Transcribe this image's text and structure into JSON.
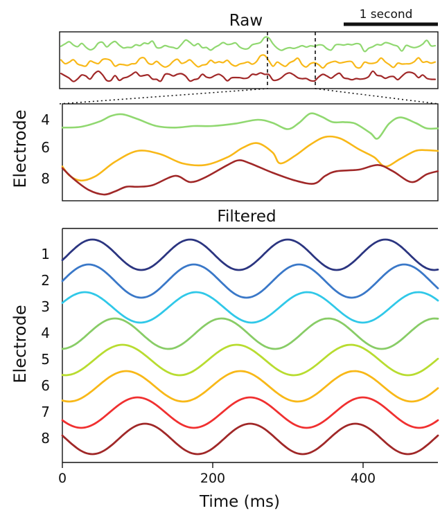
{
  "raw_panel": {
    "title": "Raw",
    "scalebar_label": "1 second"
  },
  "zoom_panel": {
    "ylabel": "Electrode",
    "tick_labels": [
      "4",
      "6",
      "8"
    ]
  },
  "filtered_panel": {
    "title": "Filtered",
    "ylabel": "Electrode",
    "tick_labels": [
      "1",
      "2",
      "3",
      "4",
      "5",
      "6",
      "7",
      "8"
    ]
  },
  "xaxis": {
    "label": "Time (ms)",
    "ticks": [
      "0",
      "200",
      "400"
    ]
  },
  "chart_data": [
    {
      "type": "line",
      "title": "Raw",
      "xlim": [
        0,
        3000
      ],
      "scalebar": {
        "label": "1 second",
        "duration_ms": 1000
      },
      "highlight_window_ms": [
        1250,
        1750
      ],
      "series": [
        {
          "electrode": 4,
          "color": "#90d870"
        },
        {
          "electrode": 6,
          "color": "#f8b818"
        },
        {
          "electrode": 8,
          "color": "#a02828"
        }
      ]
    },
    {
      "type": "line",
      "ylabel": "Electrode",
      "xlim": [
        0,
        500
      ],
      "series": [
        {
          "electrode": 4,
          "color": "#90d870",
          "x": [
            0,
            25,
            50,
            65,
            80,
            100,
            125,
            150,
            175,
            200,
            230,
            260,
            280,
            300,
            315,
            330,
            345,
            360,
            375,
            390,
            410,
            420,
            435,
            450,
            470,
            485,
            500
          ],
          "y": [
            4.5,
            4.45,
            4.1,
            3.75,
            3.65,
            3.95,
            4.4,
            4.5,
            4.4,
            4.4,
            4.25,
            4.0,
            4.2,
            4.6,
            4.2,
            3.6,
            3.8,
            4.15,
            4.15,
            4.25,
            4.85,
            5.2,
            4.25,
            3.85,
            4.2,
            4.55,
            4.55
          ]
        },
        {
          "electrode": 6,
          "color": "#f8b818",
          "x": [
            0,
            10,
            25,
            45,
            70,
            100,
            130,
            160,
            190,
            220,
            240,
            260,
            280,
            290,
            310,
            330,
            350,
            370,
            395,
            415,
            430,
            450,
            470,
            485,
            500
          ],
          "y": [
            7.0,
            7.6,
            7.9,
            7.6,
            6.7,
            6.0,
            6.2,
            6.8,
            6.9,
            6.4,
            5.8,
            5.5,
            6.1,
            6.8,
            6.3,
            5.6,
            5.1,
            5.2,
            5.9,
            6.4,
            7.0,
            6.5,
            6.0,
            5.95,
            6.0
          ]
        },
        {
          "electrode": 8,
          "color": "#a02828",
          "x": [
            0,
            15,
            35,
            55,
            70,
            85,
            100,
            120,
            150,
            170,
            190,
            220,
            235,
            250,
            280,
            310,
            335,
            350,
            365,
            395,
            420,
            440,
            465,
            485,
            500
          ],
          "y": [
            7.1,
            7.8,
            8.5,
            8.8,
            8.6,
            8.3,
            8.3,
            8.2,
            7.6,
            8.0,
            7.7,
            6.9,
            6.6,
            6.8,
            7.4,
            7.9,
            8.1,
            7.6,
            7.3,
            7.2,
            6.9,
            7.3,
            8.0,
            7.5,
            7.3
          ]
        }
      ]
    },
    {
      "type": "line",
      "title": "Filtered",
      "xlabel": "Time (ms)",
      "ylabel": "Electrode",
      "xlim": [
        0,
        500
      ],
      "xticks": [
        0,
        200,
        400
      ],
      "series": [
        {
          "electrode": 1,
          "color": "#2b3580",
          "period_ms": 130,
          "peaks_ms": [
            170,
            295,
            430
          ]
        },
        {
          "electrode": 2,
          "color": "#3a78c8",
          "period_ms": 140,
          "peaks_ms": [
            35,
            175,
            315,
            455
          ]
        },
        {
          "electrode": 3,
          "color": "#30c8e8",
          "period_ms": 148,
          "peaks_ms": [
            30,
            170,
            315,
            460
          ]
        },
        {
          "electrode": 4,
          "color": "#88cc66",
          "period_ms": 142,
          "peaks_ms": [
            70,
            215,
            355
          ]
        },
        {
          "electrode": 5,
          "color": "#b8dc30",
          "period_ms": 152,
          "peaks_ms": [
            80,
            225,
            370
          ]
        },
        {
          "electrode": 6,
          "color": "#f8b818",
          "period_ms": 152,
          "peaks_ms": [
            85,
            235,
            380
          ]
        },
        {
          "electrode": 7,
          "color": "#f03030",
          "period_ms": 150,
          "peaks_ms": [
            100,
            235,
            385
          ]
        },
        {
          "electrode": 8,
          "color": "#a02828",
          "period_ms": 140,
          "peaks_ms": [
            110,
            245,
            395
          ]
        }
      ]
    }
  ]
}
